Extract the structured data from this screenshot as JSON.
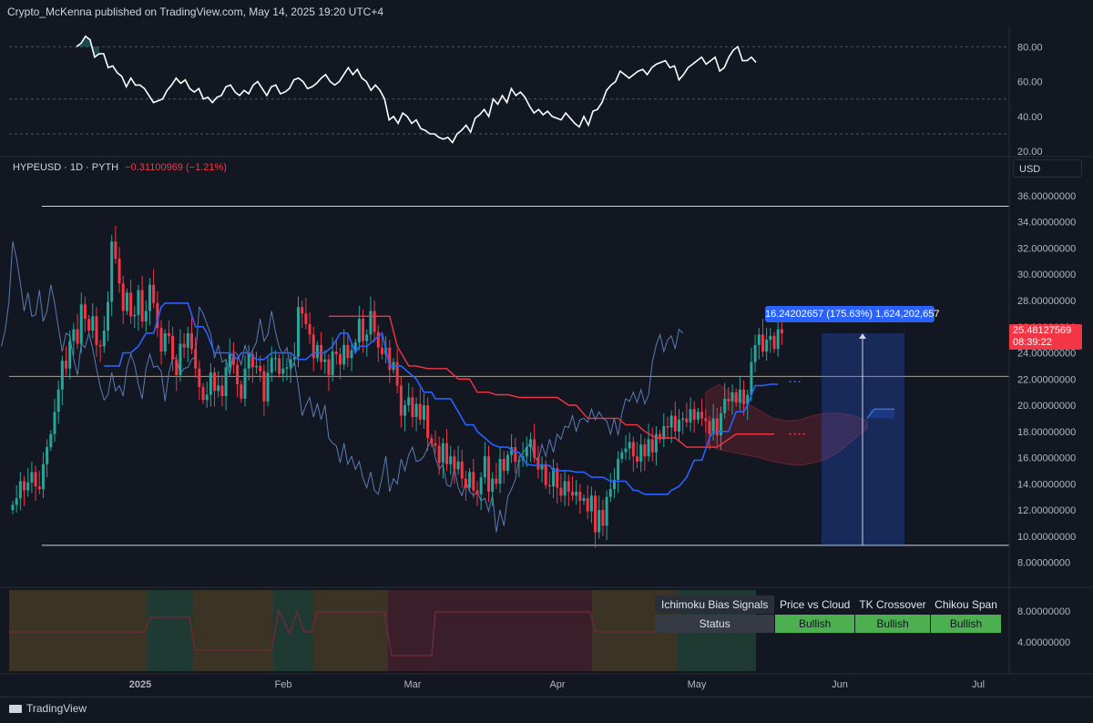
{
  "publisher_line": "Crypto_McKenna published on TradingView.com, May 14, 2025 19:20 UTC+4",
  "legend": {
    "symbol": "HYPEUSD · 1D · PYTH",
    "change": "−0.31100969 (−1.21%)"
  },
  "currency_button": "USD",
  "footer": {
    "brand": "TradingView"
  },
  "last_price": {
    "value": "25.48127569",
    "countdown": "08:39:22"
  },
  "measure": {
    "label": "16.24202657 (175.63%) 1,624,202,657"
  },
  "signals_table": {
    "title": "Ichimoku Bias Signals",
    "columns": [
      "Price vs Cloud",
      "TK Crossover",
      "Chikou Span"
    ],
    "row_label": "Status",
    "values": [
      "Bullish",
      "Bullish",
      "Bullish"
    ]
  },
  "colors": {
    "background": "#131722",
    "bull": "#26a69a",
    "bear": "#f23645",
    "tenkan": "#2962ff",
    "kijun": "#f23645",
    "chikou": "#5b7bb5",
    "horizontal_line": "#ff8c1a",
    "measure": "#2962ff",
    "signal_bullish": "#4caf50"
  },
  "chart_data": [
    {
      "type": "line",
      "name": "oscillator",
      "y_ticks": [
        "80.00",
        "60.00",
        "40.00",
        "20.00"
      ],
      "ylim": [
        18,
        88
      ],
      "dashed_levels": [
        80,
        50,
        30
      ],
      "values": [
        80,
        82,
        86,
        84,
        74,
        76,
        76,
        68,
        69,
        65,
        63,
        57,
        62,
        58,
        58,
        56,
        52,
        48,
        49,
        50,
        55,
        58,
        62,
        59,
        61,
        56,
        54,
        56,
        50,
        51,
        48,
        51,
        52,
        57,
        58,
        54,
        52,
        55,
        53,
        58,
        60,
        56,
        52,
        57,
        58,
        53,
        54,
        56,
        61,
        62,
        60,
        56,
        57,
        59,
        62,
        64,
        60,
        58,
        60,
        64,
        68,
        64,
        67,
        62,
        60,
        55,
        58,
        55,
        50,
        38,
        40,
        36,
        42,
        40,
        36,
        38,
        33,
        32,
        30,
        30,
        28,
        27,
        28,
        25,
        30,
        32,
        35,
        31,
        39,
        41,
        44,
        40,
        50,
        47,
        52,
        48,
        56,
        52,
        54,
        51,
        46,
        42,
        44,
        41,
        43,
        40,
        39,
        38,
        42,
        39,
        36,
        34,
        40,
        35,
        43,
        44,
        48,
        55,
        58,
        60,
        66,
        64,
        62,
        64,
        66,
        67,
        64,
        68,
        70,
        71,
        72,
        68,
        69,
        61,
        64,
        68,
        70,
        72,
        74,
        70,
        72,
        74,
        66,
        68,
        74,
        78,
        80,
        72,
        72,
        74,
        71
      ]
    },
    {
      "type": "candlestick",
      "name": "HYPEUSD",
      "x_ticks": [
        "2025",
        "Feb",
        "Mar",
        "Apr",
        "May",
        "Jun",
        "Jul"
      ],
      "y_ticks": [
        "36.00000000",
        "34.00000000",
        "32.00000000",
        "30.00000000",
        "28.00000000",
        "26.00000000",
        "24.00000000",
        "22.00000000",
        "20.00000000",
        "18.00000000",
        "16.00000000",
        "14.00000000",
        "12.00000000",
        "10.00000000",
        "8.00000000"
      ],
      "ylim": [
        7.0,
        36.9
      ],
      "support_level": 9.3,
      "resistance_level": 35.2,
      "horizontal_line": 22.2,
      "close": [
        12.4,
        12.9,
        14.2,
        13.5,
        14.1,
        14.9,
        13.8,
        13.6,
        15.5,
        16.8,
        17.8,
        19.5,
        21.2,
        23.4,
        22.8,
        24.9,
        25.8,
        24.7,
        27.7,
        26.6,
        25.7,
        26.8,
        24.6,
        24.5,
        25.7,
        27.9,
        32.5,
        31.2,
        29.3,
        27.2,
        28.6,
        26.8,
        26.9,
        28.8,
        26.4,
        27.2,
        29.2,
        27.8,
        25.9,
        24.1,
        25.5,
        25.3,
        23.5,
        22.3,
        24.7,
        24.4,
        25.5,
        24.3,
        22.8,
        21.4,
        20.4,
        20.8,
        22.5,
        21.1,
        21.5,
        20.7,
        22.9,
        23.9,
        23.1,
        21.6,
        20.5,
        22.8,
        23.9,
        22.9,
        23.0,
        22.6,
        20.3,
        22.5,
        23.6,
        23.6,
        22.4,
        22.8,
        22.9,
        23.5,
        23.7,
        27.5,
        27.0,
        26.2,
        25.4,
        23.6,
        24.6,
        23.3,
        23.5,
        22.3,
        24.1,
        23.9,
        23.1,
        24.6,
        23.6,
        24.2,
        24.8,
        26.6,
        24.9,
        25.4,
        27.2,
        25.6,
        24.4,
        23.9,
        24.4,
        22.7,
        23.3,
        21.5,
        19.2,
        20.0,
        20.6,
        19.1,
        20.1,
        18.9,
        20.0,
        17.5,
        17.1,
        16.9,
        15.6,
        17.1,
        15.5,
        16.1,
        15.1,
        15.7,
        14.4,
        13.7,
        14.9,
        13.5,
        13.2,
        14.5,
        16.1,
        13.4,
        14.4,
        14.0,
        15.9,
        15.0,
        16.2,
        16.8,
        15.7,
        15.8,
        16.1,
        16.8,
        17.4,
        16.0,
        15.1,
        15.5,
        13.9,
        13.8,
        15.2,
        13.7,
        13.1,
        14.2,
        13.4,
        13.1,
        13.4,
        12.7,
        12.9,
        11.9,
        13.1,
        10.3,
        12.0,
        10.8,
        13.0,
        13.6,
        14.3,
        15.9,
        16.4,
        16.7,
        17.2,
        16.1,
        15.7,
        17.0,
        16.1,
        17.4,
        16.4,
        17.8,
        17.4,
        18.4,
        18.3,
        19.2,
        18.0,
        18.9,
        19.0,
        18.7,
        19.7,
        18.9,
        19.5,
        19.0,
        18.8,
        17.8,
        19.0,
        17.7,
        19.4,
        20.5,
        20.3,
        21.0,
        20.2,
        21.2,
        20.1,
        20.8,
        23.3,
        24.6,
        25.4,
        24.1,
        25.0,
        25.3,
        24.3,
        25.8,
        25.5
      ],
      "ichimoku": {
        "tenkan": [
          23.0,
          23.0,
          23.0,
          24.0,
          24.0,
          24.5,
          25.5,
          25.5,
          27.5,
          27.8,
          27.8,
          27.8,
          27.8,
          26.0,
          26.0,
          25.5,
          24.0,
          24.0,
          24.0,
          23.5,
          24.0,
          24.0,
          23.5,
          23.5,
          24.0,
          24.0,
          24.0,
          24.0,
          23.5,
          23.5,
          24.0,
          24.0,
          24.0,
          24.5,
          25.5,
          25.5,
          24.0,
          24.5,
          24.5,
          25.0,
          25.5,
          23.0,
          23.0,
          23.0,
          22.5,
          22.0,
          21.0,
          21.0,
          20.5,
          20.5,
          20.5,
          19.5,
          18.5,
          18.5,
          18.0,
          17.5,
          17.0,
          16.8,
          16.8,
          16.4,
          16.4,
          15.5,
          15.4,
          15.4,
          15.4,
          15.0,
          15.0,
          15.0,
          14.9,
          14.9,
          14.5,
          14.5,
          14.5,
          14.2,
          14.2,
          14.2,
          13.5,
          13.5,
          13.2,
          13.2,
          13.2,
          13.2,
          13.5,
          13.8,
          14.5,
          15.8,
          15.8,
          17.5,
          18.0,
          18.0,
          18.0,
          19.5,
          19.5,
          20.0,
          21.5,
          21.5,
          21.6,
          21.6
        ],
        "kijun": [
          26.8,
          26.8,
          26.8,
          26.8,
          26.8,
          26.8,
          26.8,
          24.5,
          23.0,
          23.0,
          22.8,
          22.8,
          22.8,
          22.0,
          22.0,
          21.0,
          21.0,
          20.8,
          20.8,
          20.6,
          20.6,
          20.6,
          20.6,
          20.6,
          20.0,
          20.0,
          19.0,
          19.0,
          19.0,
          19.0,
          18.5,
          18.5,
          18.0,
          17.5,
          17.5,
          17.5,
          16.8,
          16.8,
          16.8,
          16.8,
          17.2,
          17.8,
          17.8,
          17.8,
          17.8,
          17.8
        ]
      },
      "signals_panel": {
        "y_ticks": [
          "8.00000000",
          "4.00000000"
        ],
        "phases": [
          "neutral",
          "bull",
          "neutral",
          "bull",
          "neutral",
          "bear",
          "bear",
          "neutral",
          "bull"
        ]
      }
    }
  ]
}
